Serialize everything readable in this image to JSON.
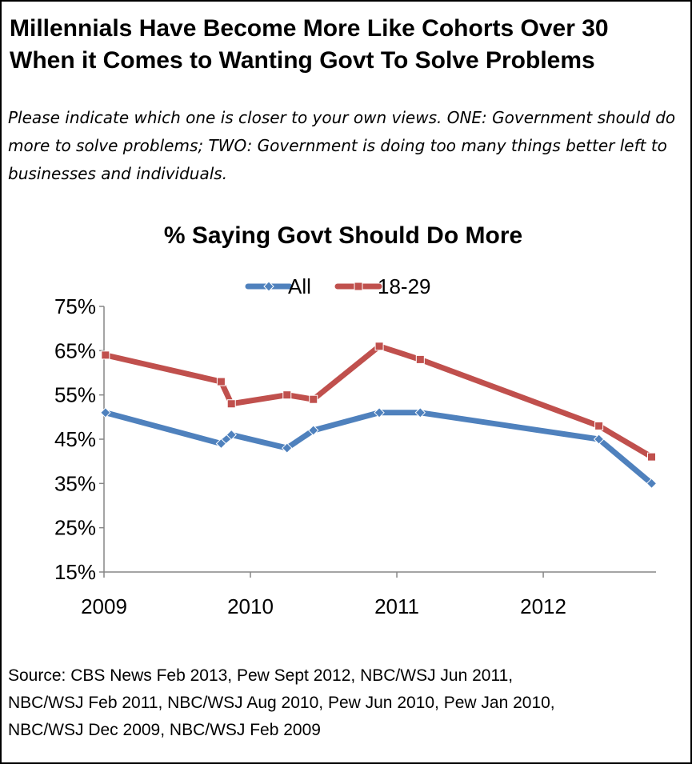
{
  "header": {
    "title_line1": "Millennials Have Become More Like Cohorts Over 30",
    "title_line2": "When it Comes to Wanting Govt To Solve Problems",
    "subtitle": "Please indicate which one is closer to your own views. ONE: Government should do more to solve problems; TWO: Government is doing too many things better left to businesses and individuals."
  },
  "chart_data": {
    "type": "line",
    "title": "% Saying Govt Should Do More",
    "xlabel": "",
    "ylabel": "",
    "x_ticks": [
      "2009",
      "2010",
      "2011",
      "2012"
    ],
    "xlim": [
      2009.0,
      2012.77
    ],
    "ylim": [
      15,
      75
    ],
    "y_ticks": [
      "15%",
      "25%",
      "35%",
      "45%",
      "55%",
      "65%",
      "75%"
    ],
    "grid": false,
    "legend_position": "top-center",
    "series": [
      {
        "name": "All",
        "color": "#4F81BD",
        "marker": "diamond",
        "x": [
          2009.01,
          2009.8,
          2009.87,
          2010.25,
          2010.43,
          2010.88,
          2011.16,
          2012.38,
          2012.74
        ],
        "values": [
          51,
          44,
          46,
          43,
          47,
          51,
          51,
          45,
          35
        ]
      },
      {
        "name": "18-29",
        "color": "#C0504D",
        "marker": "square",
        "x": [
          2009.01,
          2009.8,
          2009.87,
          2010.25,
          2010.43,
          2010.88,
          2011.16,
          2012.38,
          2012.74
        ],
        "values": [
          64,
          58,
          53,
          55,
          54,
          66,
          63,
          48,
          41
        ]
      }
    ]
  },
  "footer": {
    "source_line1": "Source: CBS News Feb 2013, Pew Sept 2012, NBC/WSJ Jun 2011,",
    "source_line2": "NBC/WSJ Feb 2011, NBC/WSJ Aug 2010, Pew Jun 2010, Pew Jan 2010,",
    "source_line3": "NBC/WSJ Dec 2009, NBC/WSJ Feb 2009"
  }
}
